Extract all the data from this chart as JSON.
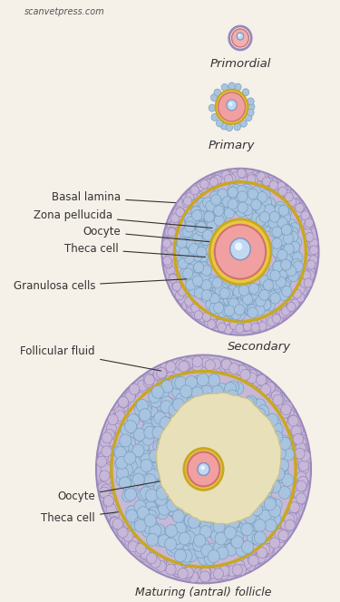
{
  "bg_color": "#f5f0e8",
  "colors": {
    "bg_color": "#f5f0e8",
    "theca_outer": "#c8b8d8",
    "theca_border": "#9988bb",
    "granulosa": "#a8c4e0",
    "granulosa_cell_border": "#7aa0c0",
    "zona_pellucida": "#e8c840",
    "zona_border": "#c8a820",
    "oocyte_pink": "#f0a0a0",
    "oocyte_border": "#d07070",
    "nucleus_blue": "#c0d8f0",
    "nucleus_border": "#8090c0",
    "nucleus_highlight": "#e8f4ff",
    "follicular_fluid": "#e8e0b8",
    "follicular_fluid_border": "#c8c090",
    "primordial_oocyte": "#f0b0b0",
    "text_color": "#333333"
  },
  "labels": {
    "watermark": "scanvetpress.com",
    "primordial": "Primordial",
    "primary": "Primary",
    "secondary": "Secondary",
    "maturing": "Maturing (antral) follicle",
    "basal_lamina": "Basal lamina",
    "zona_pellucida": "Zona pellucida",
    "oocyte": "Oocyte",
    "theca_cell": "Theca cell",
    "granulosa_cells": "Granulosa cells",
    "follicular_fluid": "Follicular fluid",
    "oocyte2": "Oocyte",
    "theca_cell2": "Theca cell"
  }
}
